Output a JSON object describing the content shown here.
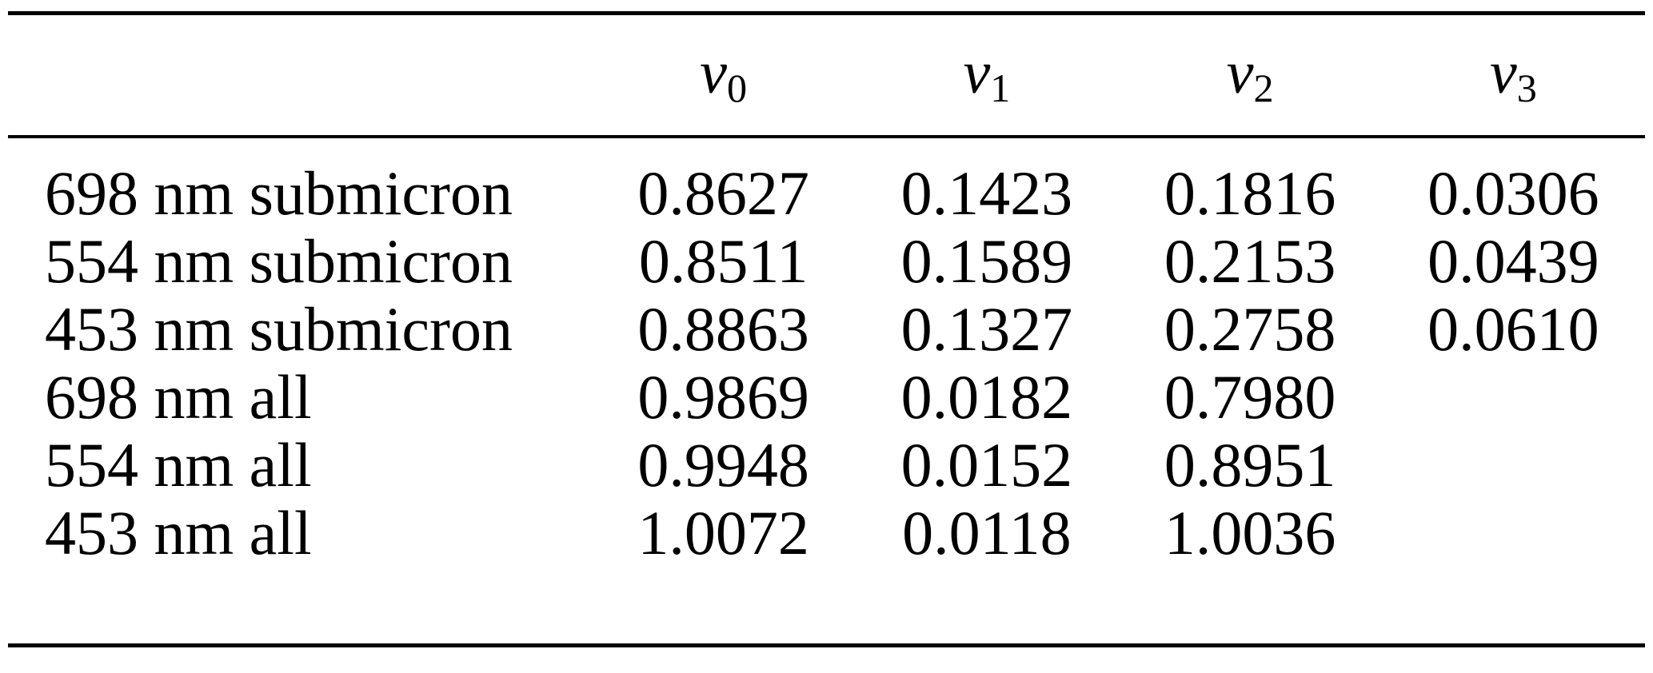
{
  "page": {
    "background_color": "#ffffff",
    "text_color": "#000000",
    "rule_color": "#000000"
  },
  "table": {
    "header": {
      "corner": "",
      "cols": [
        {
          "base": "v",
          "sub": "0"
        },
        {
          "base": "v",
          "sub": "1"
        },
        {
          "base": "v",
          "sub": "2"
        },
        {
          "base": "v",
          "sub": "3"
        }
      ]
    },
    "rows": [
      {
        "label": "698 nm submicron",
        "values": [
          "0.8627",
          "0.1423",
          "0.1816",
          "0.0306"
        ]
      },
      {
        "label": "554 nm submicron",
        "values": [
          "0.8511",
          "0.1589",
          "0.2153",
          "0.0439"
        ]
      },
      {
        "label": "453 nm submicron",
        "values": [
          "0.8863",
          "0.1327",
          "0.2758",
          "0.0610"
        ]
      },
      {
        "label": "698 nm all",
        "values": [
          "0.9869",
          "0.0182",
          "0.7980",
          ""
        ]
      },
      {
        "label": "554 nm all",
        "values": [
          "0.9948",
          "0.0152",
          "0.8951",
          ""
        ]
      },
      {
        "label": "453 nm all",
        "values": [
          "1.0072",
          "0.0118",
          "1.0036",
          ""
        ]
      }
    ]
  },
  "chart_data": {
    "type": "table",
    "columns": [
      "",
      "v0",
      "v1",
      "v2",
      "v3"
    ],
    "rows": [
      [
        "698 nm submicron",
        0.8627,
        0.1423,
        0.1816,
        0.0306
      ],
      [
        "554 nm submicron",
        0.8511,
        0.1589,
        0.2153,
        0.0439
      ],
      [
        "453 nm submicron",
        0.8863,
        0.1327,
        0.2758,
        0.061
      ],
      [
        "698 nm all",
        0.9869,
        0.0182,
        0.798,
        null
      ],
      [
        "554 nm all",
        0.9948,
        0.0152,
        0.8951,
        null
      ],
      [
        "453 nm all",
        1.0072,
        0.0118,
        1.0036,
        null
      ]
    ]
  }
}
